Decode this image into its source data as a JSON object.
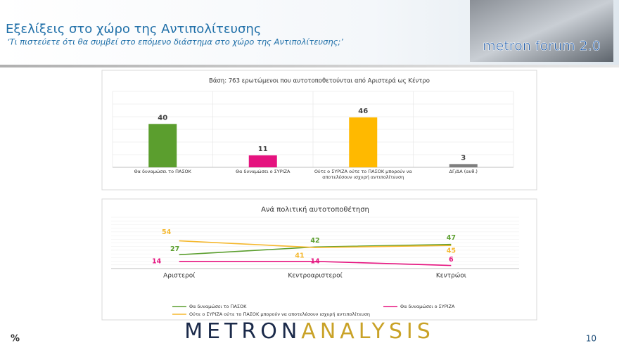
{
  "header": {
    "title": "Εξελίξεις στο χώρο της Αντιπολίτευσης",
    "subtitle": "‘Τι πιστεύετε ότι θα συμβεί στο επόμενο διάστημα στο χώρο της Αντιπολίτευσης;’",
    "logo": "metron forum 2.0"
  },
  "chart_data": [
    {
      "type": "bar",
      "title": "Βάση: 763 ερωτώμενοι που αυτοτοποθετούνται από Αριστερά ως Κέντρο",
      "categories": [
        "Θα δυναμώσει το ΠΑΣΟΚ",
        "Θα δυναμώσει ο ΣΥΡΙΖΑ",
        "Ούτε ο ΣΥΡΙΖΑ ούτε το ΠΑΣΟΚ μπορούν να αποτελέσουν ισχυρή αντιπολίτευση",
        "ΔΓ/ΔΑ (αυθ.)"
      ],
      "values": [
        40,
        11,
        46,
        3
      ],
      "colors": [
        "#5b9e2e",
        "#e5137f",
        "#ffb900",
        "#7f7f7f"
      ],
      "ylim": [
        0,
        70
      ],
      "grid": true
    },
    {
      "type": "line",
      "title": "Ανά πολιτική αυτοτοποθέτηση",
      "categories": [
        "Αριστεροί",
        "Κεντροαριστεροί",
        "Κεντρώοι"
      ],
      "series": [
        {
          "name": "Θα δυναμώσει το ΠΑΣΟΚ",
          "color": "#5b9e2e",
          "values": [
            27,
            42,
            47
          ]
        },
        {
          "name": "Θα δυναμώσει ο ΣΥΡΙΖΑ",
          "color": "#e5137f",
          "values": [
            14,
            14,
            6
          ]
        },
        {
          "name": "Ούτε ο ΣΥΡΙΖΑ ούτε το ΠΑΣΟΚ μπορούν να αποτελέσουν ισχυρή αντιπολίτευση",
          "color": "#f5b82e",
          "values": [
            54,
            41,
            45
          ]
        }
      ],
      "ylim": [
        0,
        100
      ],
      "grid": true
    }
  ],
  "footer": {
    "percent": "%",
    "brand_a": "METRON",
    "brand_b": "ANALYSIS",
    "page": "10"
  }
}
